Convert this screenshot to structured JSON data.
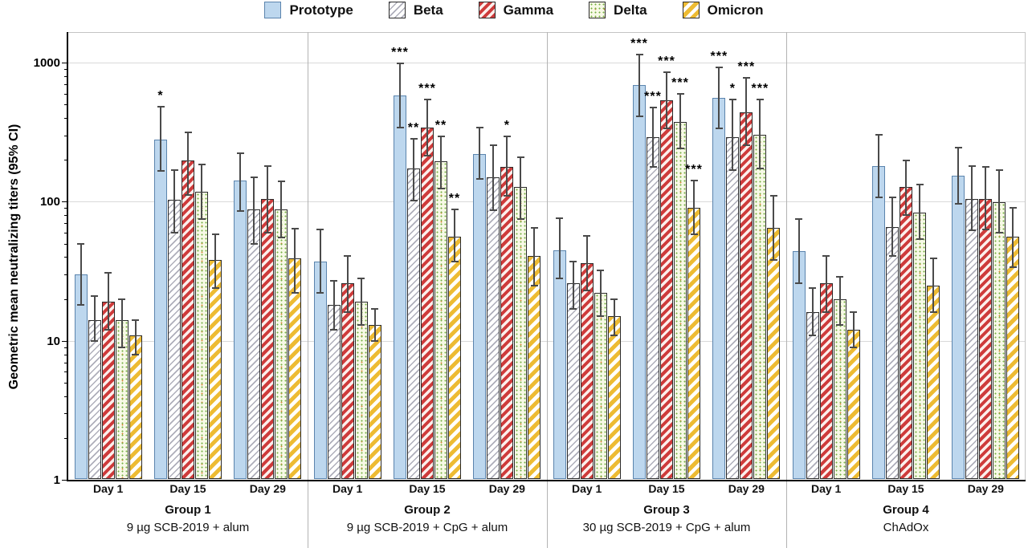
{
  "chart_data": {
    "type": "bar",
    "yscale": "log",
    "ylabel": "Geometric mean neutralizing titers (95% CI)",
    "ylim": [
      1,
      1660
    ],
    "yticks": [
      1,
      10,
      100,
      1000
    ],
    "ytick_labels": [
      "1",
      "10",
      "100",
      "1000"
    ],
    "grid": "horizontal-major",
    "legend_position": "top-center",
    "error_bars": "95% CI",
    "series": [
      {
        "key": "prototype",
        "label": "Prototype",
        "fill": {
          "type": "solid",
          "color": "#BDD7EE",
          "border": "#5B84AD"
        }
      },
      {
        "key": "beta",
        "label": "Beta",
        "fill": {
          "type": "stripes",
          "color": "#AEAEBA",
          "bg": "#FFFFFF",
          "width": 1.6,
          "gap": 4.2,
          "border": "#2B2B2B"
        }
      },
      {
        "key": "gamma",
        "label": "Gamma",
        "fill": {
          "type": "stripes",
          "color": "#CE3B3B",
          "bg": "#FCEFEC",
          "width": 4,
          "gap": 3.5,
          "border": "#2B2B2B"
        }
      },
      {
        "key": "delta",
        "label": "Delta",
        "fill": {
          "type": "dots",
          "color": "#74B043",
          "color2": "#D98A3D",
          "bg": "#F7F9E6",
          "border": "#2B2B2B"
        }
      },
      {
        "key": "omicron",
        "label": "Omicron",
        "fill": {
          "type": "stripes",
          "color": "#EDBB33",
          "bg": "#FFFFFF",
          "width": 5,
          "gap": 4.5,
          "border": "#2B2B2B"
        }
      }
    ],
    "groups": [
      {
        "name": "Group 1",
        "subtitle": "9 µg SCB-2019 + alum",
        "days": [
          {
            "label": "Day 1",
            "values": [
              30,
              14,
              19,
              14,
              11
            ],
            "ci_low": [
              18,
              10,
              12,
              9,
              8
            ],
            "ci_high": [
              50,
              21,
              31,
              20,
              14
            ],
            "sig": [
              "",
              "",
              "",
              "",
              ""
            ]
          },
          {
            "label": "Day 15",
            "values": [
              280,
              103,
              197,
              118,
              38
            ],
            "ci_low": [
              167,
              60,
              112,
              75,
              24
            ],
            "ci_high": [
              480,
              168,
              316,
              185,
              58
            ],
            "sig": [
              "*",
              "",
              "",
              "",
              ""
            ]
          },
          {
            "label": "Day 29",
            "values": [
              142,
              88,
              105,
              88,
              39
            ],
            "ci_low": [
              86,
              50,
              60,
              55,
              22
            ],
            "ci_high": [
              223,
              150,
              180,
              140,
              64
            ],
            "sig": [
              "",
              "",
              "",
              "",
              ""
            ]
          }
        ]
      },
      {
        "name": "Group 2",
        "subtitle": "9 µg SCB-2019 + CpG + alum",
        "days": [
          {
            "label": "Day 1",
            "values": [
              37,
              18,
              26,
              19,
              13
            ],
            "ci_low": [
              22,
              12,
              16,
              13,
              10
            ],
            "ci_high": [
              63,
              27,
              41,
              28,
              17
            ],
            "sig": [
              "",
              "",
              "",
              "",
              ""
            ]
          },
          {
            "label": "Day 15",
            "values": [
              580,
              173,
              341,
              195,
              56
            ],
            "ci_low": [
              342,
              102,
              214,
              124,
              37
            ],
            "ci_high": [
              990,
              283,
              543,
              297,
              88
            ],
            "sig": [
              "***",
              "**",
              "***",
              "**",
              "**"
            ]
          },
          {
            "label": "Day 29",
            "values": [
              219,
              150,
              177,
              127,
              41
            ],
            "ci_low": [
              146,
              87,
              110,
              75,
              25
            ],
            "ci_high": [
              342,
              255,
              295,
              209,
              65
            ],
            "sig": [
              "",
              "",
              "*",
              "",
              ""
            ]
          }
        ]
      },
      {
        "name": "Group 3",
        "subtitle": "30 µg SCB-2019 + CpG + alum",
        "days": [
          {
            "label": "Day 1",
            "values": [
              45,
              26,
              36,
              22,
              15
            ],
            "ci_low": [
              28,
              17,
              23,
              15,
              11
            ],
            "ci_high": [
              76,
              37,
              57,
              32,
              20
            ],
            "sig": [
              "",
              "",
              "",
              "",
              ""
            ]
          },
          {
            "label": "Day 15",
            "values": [
              690,
              291,
              536,
              375,
              90
            ],
            "ci_low": [
              409,
              179,
              337,
              242,
              58
            ],
            "ci_high": [
              1140,
              474,
              855,
              595,
              142
            ],
            "sig": [
              "***",
              "***",
              "***",
              "***",
              "***"
            ]
          },
          {
            "label": "Day 29",
            "values": [
              558,
              290,
              440,
              303,
              65
            ],
            "ci_low": [
              335,
              169,
              255,
              173,
              38
            ],
            "ci_high": [
              925,
              543,
              779,
              543,
              111
            ],
            "sig": [
              "***",
              "*",
              "***",
              "***",
              ""
            ]
          }
        ]
      },
      {
        "name": "Group 4",
        "subtitle": "ChAdOx",
        "days": [
          {
            "label": "Day 1",
            "values": [
              44,
              16,
              26,
              20,
              12
            ],
            "ci_low": [
              26,
              11,
              16,
              13,
              9
            ],
            "ci_high": [
              75,
              24,
              41,
              29,
              16
            ],
            "sig": [
              "",
              "",
              "",
              "",
              ""
            ]
          },
          {
            "label": "Day 15",
            "values": [
              181,
              66,
              128,
              84,
              25
            ],
            "ci_low": [
              107,
              41,
              80,
              54,
              16
            ],
            "ci_high": [
              303,
              108,
              197,
              133,
              39
            ],
            "sig": [
              "",
              "",
              "",
              "",
              ""
            ]
          },
          {
            "label": "Day 29",
            "values": [
              153,
              105,
              105,
              99,
              56
            ],
            "ci_low": [
              97,
              62,
              63,
              60,
              34
            ],
            "ci_high": [
              245,
              180,
              177,
              169,
              90
            ],
            "sig": [
              "",
              "",
              "",
              "",
              ""
            ]
          }
        ]
      }
    ],
    "colors": {
      "gridline": "#d9d9d9",
      "axis": "#000000",
      "error_bar": "#4a4a4a",
      "separator": "#b3b3b3"
    }
  }
}
